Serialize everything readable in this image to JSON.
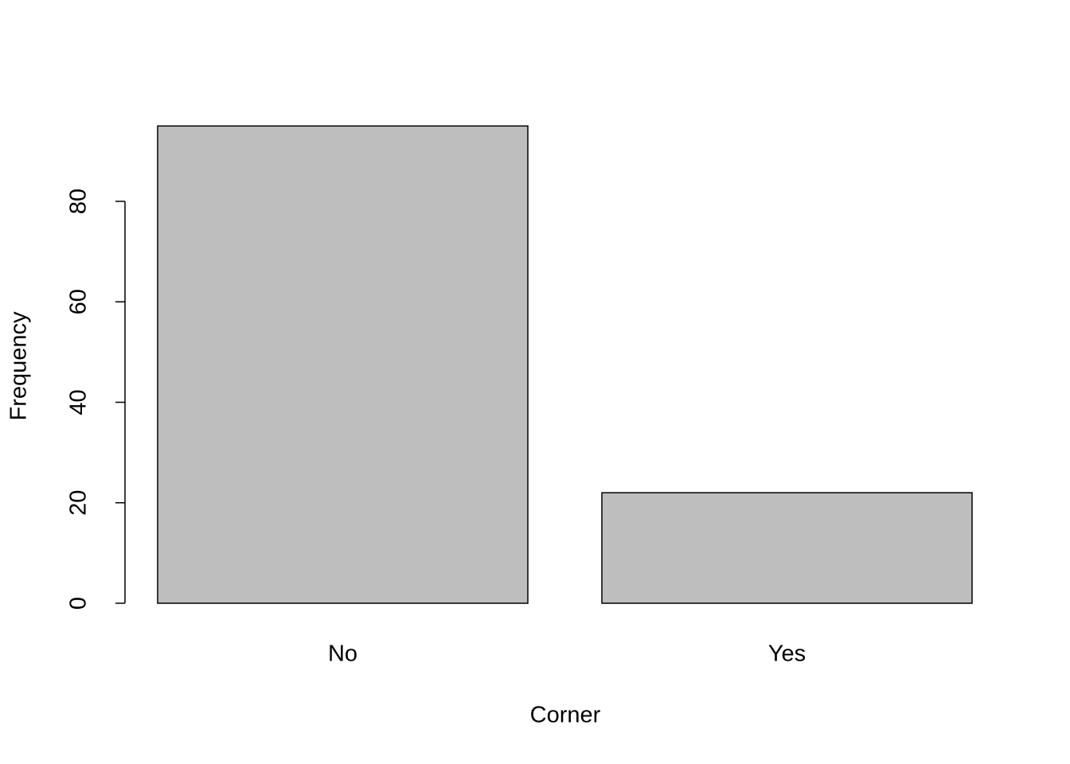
{
  "chart_data": {
    "type": "bar",
    "x_label": "Corner",
    "y_label": "Frequency",
    "categories": [
      "No",
      "Yes"
    ],
    "values": [
      95,
      22
    ],
    "color": "#bebebe",
    "ylim": [
      0,
      95
    ],
    "yticks": [
      0,
      20,
      40,
      60,
      80
    ],
    "grid": false
  }
}
